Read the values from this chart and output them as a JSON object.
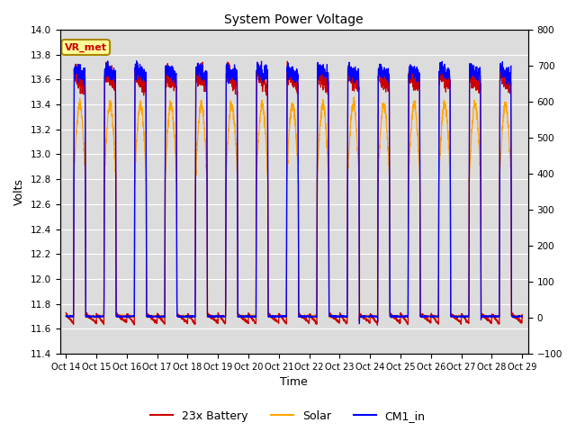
{
  "title": "System Power Voltage",
  "xlabel": "Time",
  "ylabel_left": "Volts",
  "ylim_left": [
    11.4,
    14.0
  ],
  "ylim_right": [
    -100,
    800
  ],
  "yticks_left": [
    11.4,
    11.6,
    11.8,
    12.0,
    12.2,
    12.4,
    12.6,
    12.8,
    13.0,
    13.2,
    13.4,
    13.6,
    13.8,
    14.0
  ],
  "yticks_right": [
    -100,
    0,
    100,
    200,
    300,
    400,
    500,
    600,
    700,
    800
  ],
  "xtick_labels": [
    "Oct 14",
    "Oct 15",
    "Oct 16",
    "Oct 17",
    "Oct 18",
    "Oct 19",
    "Oct 20",
    "Oct 21",
    "Oct 22",
    "Oct 23",
    "Oct 24",
    "Oct 25",
    "Oct 26",
    "Oct 27",
    "Oct 28",
    "Oct 29"
  ],
  "n_days": 16,
  "colors": {
    "battery": "#CC0000",
    "solar": "#FFA500",
    "cm1": "#0000FF",
    "background": "#DCDCDC",
    "grid": "#FFFFFF"
  },
  "legend": [
    "23x Battery",
    "Solar",
    "CM1_in"
  ],
  "annotation": "VR_met",
  "annotation_color": "#CC0000",
  "annotation_bg": "#FFFF99",
  "annotation_edge": "#AA8800"
}
